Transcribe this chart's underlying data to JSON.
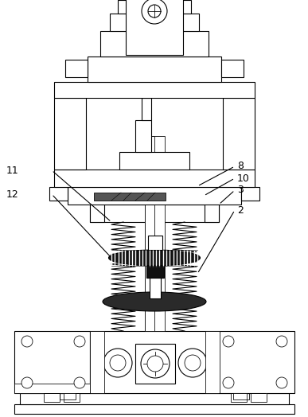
{
  "bg_color": "#ffffff",
  "line_color": "#000000",
  "lw": 0.8,
  "figsize": [
    3.87,
    5.24
  ],
  "dpi": 100
}
